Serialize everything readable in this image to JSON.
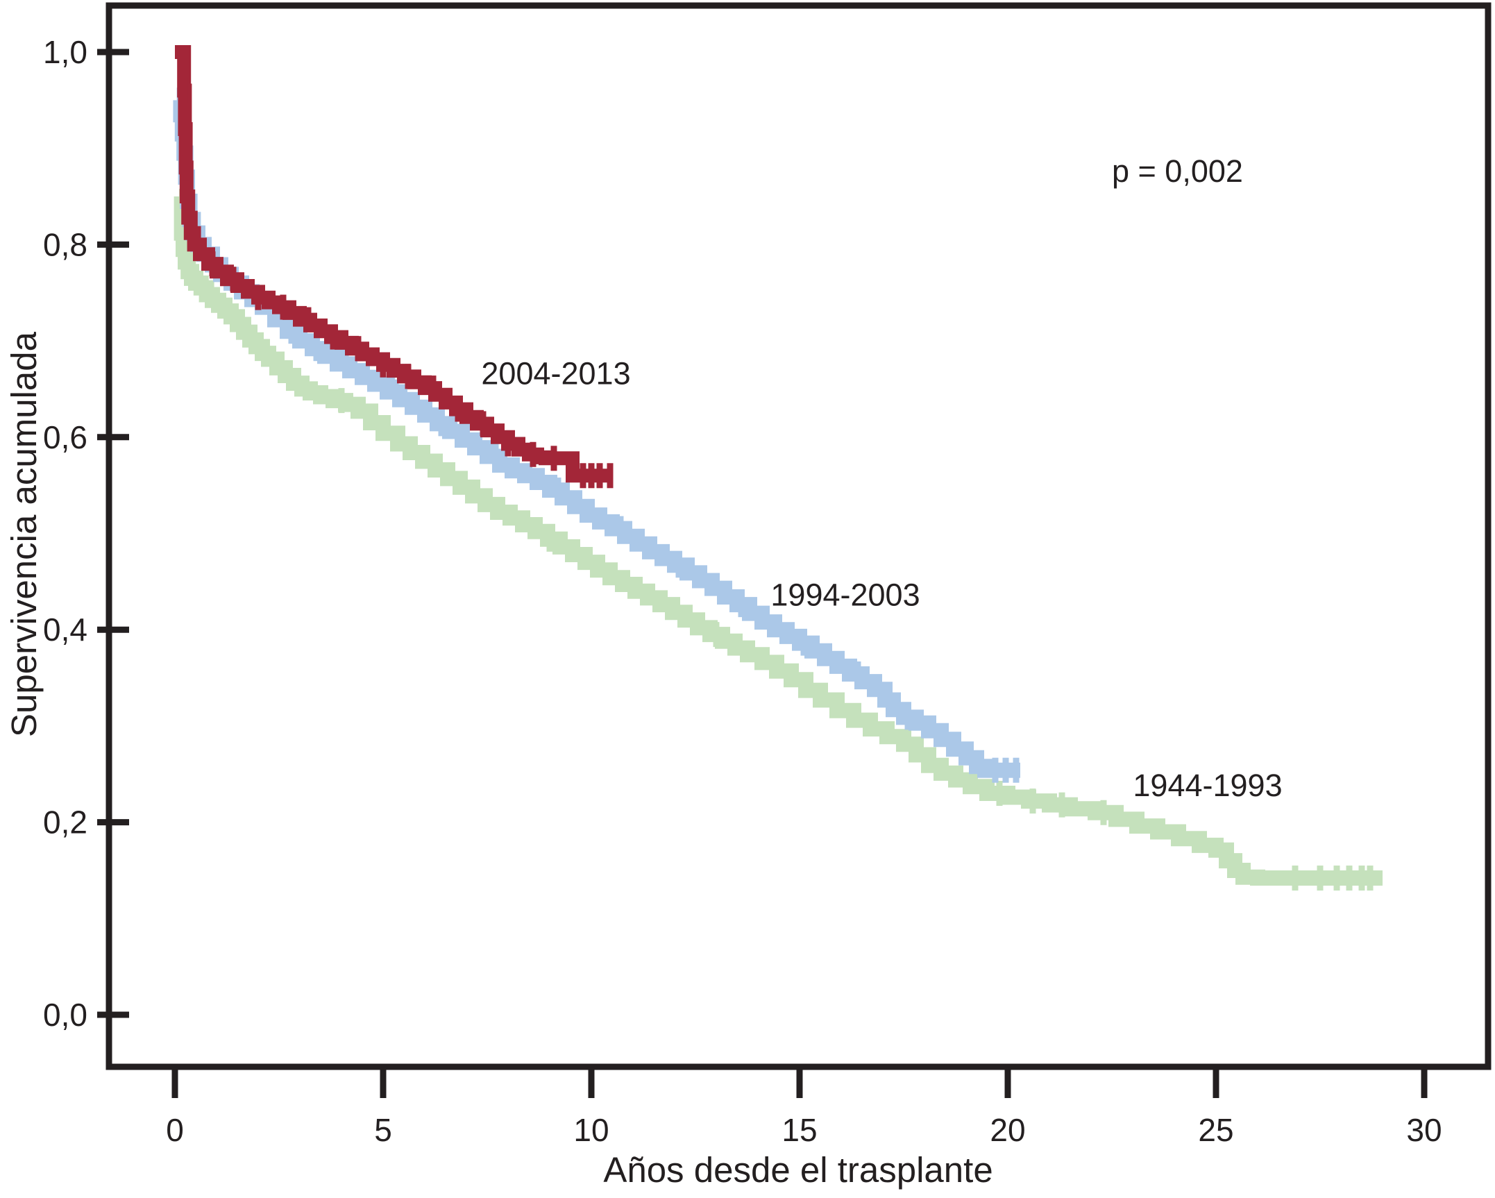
{
  "figure": {
    "background": "#ffffff",
    "frame_color": "#231f20",
    "text_color": "#231f20"
  },
  "axes": {
    "y_title": "Supervivencia acumulada",
    "x_title": "Años desde el trasplante",
    "x_tick_values": [
      0,
      5,
      10,
      15,
      20,
      25,
      30
    ],
    "x_tick_labels": [
      "0",
      "5",
      "10",
      "15",
      "20",
      "25",
      "30"
    ],
    "y_tick_values": [
      1.0,
      0.8,
      0.6,
      0.4,
      0.2,
      0.0
    ],
    "y_tick_labels": [
      "1,0",
      "0,8",
      "0,6",
      "0,4",
      "0,2",
      "0,0"
    ]
  },
  "chart_data": {
    "type": "line",
    "variant": "kaplan_meier_step",
    "title": "",
    "xlabel": "Años desde el trasplante",
    "ylabel": "Supervivencia acumulada",
    "xlim": [
      0,
      30
    ],
    "ylim": [
      0.0,
      1.0
    ],
    "grid": false,
    "legend_position": "inline-labels",
    "annotation": {
      "text": "p = 0,002",
      "x": 22.5,
      "y": 0.865
    },
    "series": [
      {
        "name": "1944-1993",
        "color": "#c5e1bc",
        "line_width": 22,
        "label": {
          "text": "1944-1993",
          "x": 24.8,
          "y": 0.227
        },
        "points": [
          [
            0.1,
            0.85
          ],
          [
            0.16,
            0.812
          ],
          [
            0.2,
            0.795
          ],
          [
            0.25,
            0.782
          ],
          [
            0.32,
            0.772
          ],
          [
            0.4,
            0.765
          ],
          [
            0.5,
            0.76
          ],
          [
            0.63,
            0.755
          ],
          [
            0.76,
            0.748
          ],
          [
            0.9,
            0.742
          ],
          [
            1.05,
            0.737
          ],
          [
            1.2,
            0.731
          ],
          [
            1.35,
            0.725
          ],
          [
            1.5,
            0.717
          ],
          [
            1.65,
            0.709
          ],
          [
            1.8,
            0.701
          ],
          [
            1.95,
            0.694
          ],
          [
            2.1,
            0.687
          ],
          [
            2.25,
            0.681
          ],
          [
            2.45,
            0.672
          ],
          [
            2.65,
            0.664
          ],
          [
            2.85,
            0.656
          ],
          [
            3.05,
            0.65
          ],
          [
            3.25,
            0.646
          ],
          [
            3.5,
            0.642
          ],
          [
            3.8,
            0.638
          ],
          [
            4.1,
            0.634
          ],
          [
            4.4,
            0.627
          ],
          [
            4.7,
            0.615
          ],
          [
            5.0,
            0.604
          ],
          [
            5.35,
            0.593
          ],
          [
            5.65,
            0.584
          ],
          [
            5.95,
            0.575
          ],
          [
            6.25,
            0.566
          ],
          [
            6.55,
            0.557
          ],
          [
            6.85,
            0.548
          ],
          [
            7.15,
            0.539
          ],
          [
            7.45,
            0.53
          ],
          [
            7.75,
            0.522
          ],
          [
            8.05,
            0.516
          ],
          [
            8.35,
            0.509
          ],
          [
            8.65,
            0.502
          ],
          [
            8.95,
            0.494
          ],
          [
            9.25,
            0.486
          ],
          [
            9.55,
            0.478
          ],
          [
            9.85,
            0.47
          ],
          [
            10.15,
            0.462
          ],
          [
            10.45,
            0.454
          ],
          [
            10.75,
            0.447
          ],
          [
            11.05,
            0.44
          ],
          [
            11.35,
            0.433
          ],
          [
            11.65,
            0.426
          ],
          [
            11.95,
            0.418
          ],
          [
            12.25,
            0.41
          ],
          [
            12.55,
            0.402
          ],
          [
            12.85,
            0.395
          ],
          [
            13.15,
            0.388
          ],
          [
            13.45,
            0.381
          ],
          [
            13.75,
            0.374
          ],
          [
            14.1,
            0.366
          ],
          [
            14.45,
            0.357
          ],
          [
            14.8,
            0.348
          ],
          [
            15.15,
            0.337
          ],
          [
            15.5,
            0.327
          ],
          [
            15.9,
            0.316
          ],
          [
            16.3,
            0.306
          ],
          [
            16.7,
            0.297
          ],
          [
            17.1,
            0.289
          ],
          [
            17.5,
            0.281
          ],
          [
            17.8,
            0.27
          ],
          [
            18.1,
            0.259
          ],
          [
            18.4,
            0.251
          ],
          [
            18.75,
            0.244
          ],
          [
            19.1,
            0.237
          ],
          [
            19.5,
            0.23
          ],
          [
            20.0,
            0.226
          ],
          [
            20.5,
            0.222
          ],
          [
            21.0,
            0.218
          ],
          [
            21.5,
            0.214
          ],
          [
            22.1,
            0.21
          ],
          [
            22.6,
            0.203
          ],
          [
            23.1,
            0.196
          ],
          [
            23.6,
            0.19
          ],
          [
            24.1,
            0.183
          ],
          [
            24.6,
            0.176
          ],
          [
            25.0,
            0.171
          ],
          [
            25.25,
            0.16
          ],
          [
            25.45,
            0.15
          ],
          [
            25.65,
            0.143
          ],
          [
            26.0,
            0.142
          ],
          [
            29.0,
            0.142
          ]
        ],
        "censor_ticks": [
          4.0,
          9.0,
          13.0,
          19.8,
          20.6,
          21.3,
          22.3,
          26.9,
          27.5,
          27.9,
          28.2,
          28.5,
          28.7
        ]
      },
      {
        "name": "1994-2003",
        "color": "#abc8e8",
        "line_width": 22,
        "label": {
          "text": "1994-2003",
          "x": 16.1,
          "y": 0.425
        },
        "points": [
          [
            0.08,
            0.95
          ],
          [
            0.14,
            0.935
          ],
          [
            0.18,
            0.915
          ],
          [
            0.22,
            0.895
          ],
          [
            0.26,
            0.87
          ],
          [
            0.3,
            0.845
          ],
          [
            0.36,
            0.826
          ],
          [
            0.44,
            0.812
          ],
          [
            0.55,
            0.8
          ],
          [
            0.7,
            0.79
          ],
          [
            0.9,
            0.779
          ],
          [
            1.1,
            0.769
          ],
          [
            1.35,
            0.76
          ],
          [
            1.6,
            0.751
          ],
          [
            1.85,
            0.743
          ],
          [
            2.1,
            0.735
          ],
          [
            2.4,
            0.722
          ],
          [
            2.7,
            0.71
          ],
          [
            3.0,
            0.7
          ],
          [
            3.3,
            0.692
          ],
          [
            3.6,
            0.684
          ],
          [
            3.9,
            0.676
          ],
          [
            4.2,
            0.669
          ],
          [
            4.5,
            0.662
          ],
          [
            4.8,
            0.655
          ],
          [
            5.1,
            0.647
          ],
          [
            5.4,
            0.639
          ],
          [
            5.7,
            0.631
          ],
          [
            6.0,
            0.623
          ],
          [
            6.3,
            0.614
          ],
          [
            6.6,
            0.606
          ],
          [
            6.9,
            0.597
          ],
          [
            7.2,
            0.589
          ],
          [
            7.5,
            0.58
          ],
          [
            7.8,
            0.571
          ],
          [
            8.1,
            0.565
          ],
          [
            8.4,
            0.56
          ],
          [
            8.7,
            0.553
          ],
          [
            9.0,
            0.545
          ],
          [
            9.3,
            0.537
          ],
          [
            9.6,
            0.528
          ],
          [
            9.9,
            0.519
          ],
          [
            10.2,
            0.512
          ],
          [
            10.5,
            0.505
          ],
          [
            10.8,
            0.497
          ],
          [
            11.1,
            0.489
          ],
          [
            11.4,
            0.481
          ],
          [
            11.7,
            0.474
          ],
          [
            12.0,
            0.467
          ],
          [
            12.3,
            0.459
          ],
          [
            12.6,
            0.451
          ],
          [
            12.9,
            0.443
          ],
          [
            13.2,
            0.434
          ],
          [
            13.5,
            0.426
          ],
          [
            13.8,
            0.417
          ],
          [
            14.1,
            0.408
          ],
          [
            14.4,
            0.4
          ],
          [
            14.7,
            0.393
          ],
          [
            15.0,
            0.386
          ],
          [
            15.3,
            0.378
          ],
          [
            15.6,
            0.37
          ],
          [
            15.9,
            0.362
          ],
          [
            16.2,
            0.354
          ],
          [
            16.5,
            0.346
          ],
          [
            16.8,
            0.338
          ],
          [
            17.05,
            0.327
          ],
          [
            17.25,
            0.317
          ],
          [
            17.5,
            0.309
          ],
          [
            17.8,
            0.303
          ],
          [
            18.1,
            0.295
          ],
          [
            18.4,
            0.286
          ],
          [
            18.7,
            0.276
          ],
          [
            19.0,
            0.267
          ],
          [
            19.25,
            0.258
          ],
          [
            19.45,
            0.254
          ],
          [
            20.3,
            0.254
          ]
        ],
        "censor_ticks": [
          0.12,
          0.2,
          0.28,
          2.8,
          3.4,
          4.1,
          5.3,
          6.4,
          7.7,
          9.2,
          10.7,
          12.1,
          13.6,
          15.1,
          16.4,
          17.6,
          19.7,
          19.95,
          20.2
        ]
      },
      {
        "name": "2004-2013",
        "color": "#a32638",
        "line_width": 20,
        "label": {
          "text": "2004-2013",
          "x": 9.15,
          "y": 0.655
        },
        "points": [
          [
            0.0,
            1.0
          ],
          [
            0.22,
            0.96
          ],
          [
            0.24,
            0.92
          ],
          [
            0.26,
            0.88
          ],
          [
            0.28,
            0.85
          ],
          [
            0.32,
            0.828
          ],
          [
            0.38,
            0.812
          ],
          [
            0.46,
            0.8
          ],
          [
            0.6,
            0.79
          ],
          [
            0.8,
            0.78
          ],
          [
            1.0,
            0.772
          ],
          [
            1.25,
            0.764
          ],
          [
            1.5,
            0.757
          ],
          [
            1.75,
            0.751
          ],
          [
            2.0,
            0.745
          ],
          [
            2.25,
            0.74
          ],
          [
            2.5,
            0.735
          ],
          [
            2.75,
            0.729
          ],
          [
            3.0,
            0.722
          ],
          [
            3.25,
            0.716
          ],
          [
            3.5,
            0.71
          ],
          [
            3.75,
            0.704
          ],
          [
            4.0,
            0.698
          ],
          [
            4.25,
            0.692
          ],
          [
            4.5,
            0.686
          ],
          [
            4.75,
            0.681
          ],
          [
            5.0,
            0.675
          ],
          [
            5.25,
            0.669
          ],
          [
            5.5,
            0.663
          ],
          [
            5.75,
            0.657
          ],
          [
            6.0,
            0.651
          ],
          [
            6.25,
            0.644
          ],
          [
            6.5,
            0.636
          ],
          [
            6.75,
            0.629
          ],
          [
            7.0,
            0.621
          ],
          [
            7.25,
            0.614
          ],
          [
            7.5,
            0.607
          ],
          [
            7.75,
            0.6
          ],
          [
            8.0,
            0.593
          ],
          [
            8.25,
            0.587
          ],
          [
            8.5,
            0.582
          ],
          [
            8.7,
            0.579
          ],
          [
            8.9,
            0.578
          ],
          [
            9.55,
            0.56
          ],
          [
            10.5,
            0.56
          ]
        ],
        "censor_ticks": [
          0.23,
          0.26,
          0.3,
          0.9,
          1.4,
          2.0,
          2.6,
          3.2,
          3.8,
          4.4,
          5.0,
          5.6,
          6.2,
          6.8,
          7.4,
          8.0,
          8.6,
          9.1,
          9.8,
          10.0,
          10.2,
          10.45
        ]
      }
    ]
  }
}
